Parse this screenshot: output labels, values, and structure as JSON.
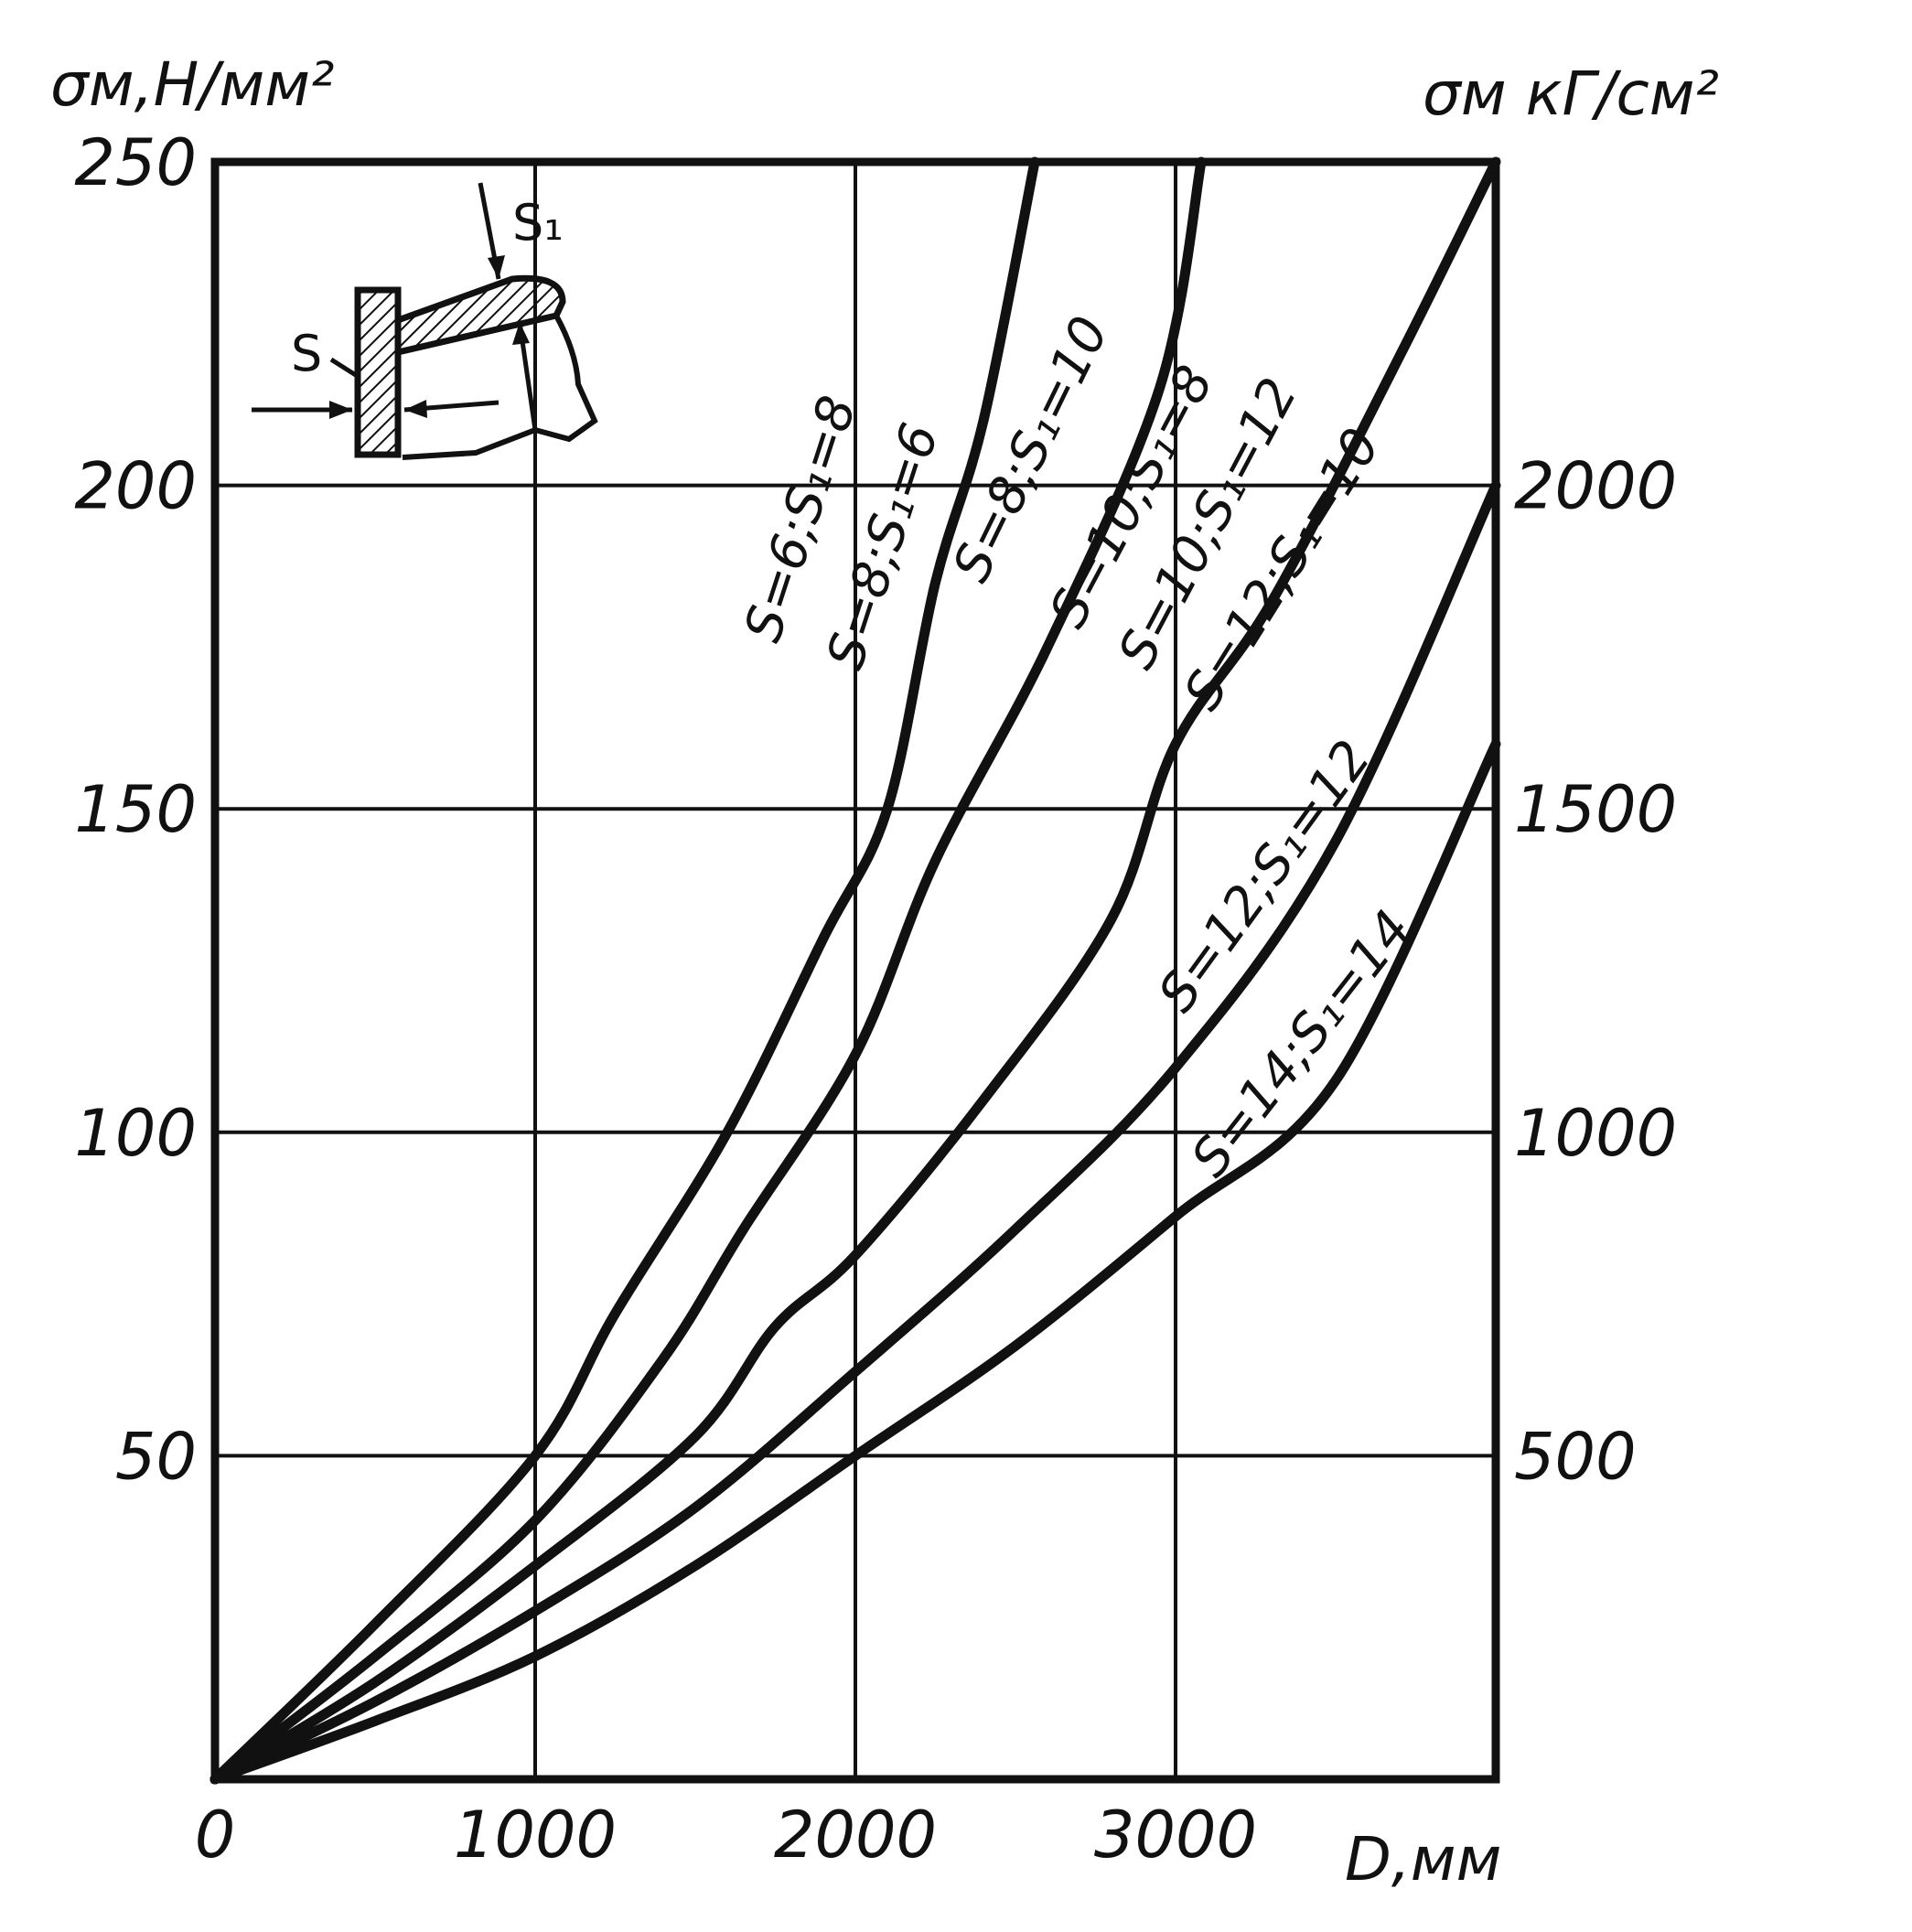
{
  "chart_data": {
    "type": "line",
    "x_axis": {
      "label": "D,мм",
      "range": [
        0,
        4000
      ],
      "ticks": [
        0,
        1000,
        2000,
        3000
      ],
      "tick_labels": [
        "0",
        "1000",
        "2000",
        "3000"
      ]
    },
    "y_axis_left": {
      "label": "σм,Н/мм²",
      "range": [
        0,
        250
      ],
      "ticks": [
        50,
        100,
        150,
        200,
        250
      ],
      "tick_labels": [
        "50",
        "100",
        "150",
        "200",
        "250"
      ]
    },
    "y_axis_right": {
      "label": "σм кГ/см²",
      "range": [
        0,
        2500
      ],
      "ticks": [
        500,
        1000,
        1500,
        2000
      ],
      "tick_labels": [
        "500",
        "1000",
        "1500",
        "2000"
      ]
    },
    "grid": true,
    "series": [
      {
        "name": "S=6;S₁=8",
        "points": [
          [
            0,
            0
          ],
          [
            500,
            24
          ],
          [
            1000,
            50
          ],
          [
            1250,
            72
          ],
          [
            1600,
            100
          ],
          [
            1900,
            130
          ],
          [
            2100,
            150
          ],
          [
            2250,
            185
          ],
          [
            2400,
            210
          ],
          [
            2560,
            250
          ]
        ]
      },
      {
        "name": "S=8;S₁=6",
        "points": [
          [
            0,
            0
          ],
          [
            500,
            19
          ],
          [
            1000,
            40
          ],
          [
            1400,
            65
          ],
          [
            1650,
            85
          ],
          [
            2000,
            112
          ],
          [
            2250,
            142
          ],
          [
            2600,
            175
          ],
          [
            2950,
            215
          ],
          [
            3080,
            250
          ]
        ]
      },
      {
        "name": "S=8;S₁=10",
        "points": [
          [
            0,
            0
          ],
          [
            500,
            15
          ],
          [
            1000,
            33
          ],
          [
            1500,
            53
          ],
          [
            1750,
            70
          ],
          [
            2000,
            81
          ],
          [
            2400,
            105
          ],
          [
            2800,
            133
          ],
          [
            3000,
            160
          ],
          [
            3300,
            182
          ],
          [
            3700,
            220
          ],
          [
            4000,
            250
          ]
        ]
      },
      {
        "name": "S=10;S₁=8",
        "points": [
          [
            0,
            0
          ],
          [
            500,
            12
          ],
          [
            1000,
            26
          ],
          [
            1500,
            42
          ],
          [
            2000,
            63
          ],
          [
            2500,
            85
          ],
          [
            3000,
            110
          ],
          [
            3500,
            145
          ],
          [
            4000,
            200
          ]
        ]
      },
      {
        "name": "S=12;S₁=10",
        "points": [
          [
            0,
            0
          ],
          [
            500,
            9
          ],
          [
            1000,
            19
          ],
          [
            1500,
            33
          ],
          [
            2000,
            50
          ],
          [
            2500,
            67
          ],
          [
            3000,
            87
          ],
          [
            3500,
            108
          ],
          [
            4000,
            160
          ]
        ]
      }
    ],
    "curve_labels": [
      "S=6;S₁=8",
      "S=8;S₁=6",
      "S=8;S₁=10",
      "S=10;S₁=8",
      "S=10;S₁=12",
      "S=12;S₁=10",
      "S=12;S₁=12",
      "S=14;S₁=14"
    ],
    "inset": {
      "label_s": "S",
      "label_s1": "S₁"
    }
  }
}
